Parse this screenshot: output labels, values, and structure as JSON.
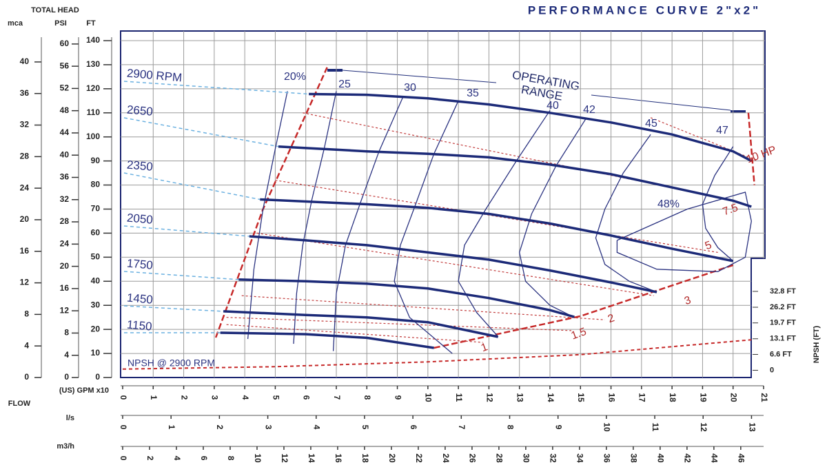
{
  "chart_data": {
    "type": "line",
    "title": "PERFORMANCE CURVE 2\"x2\"",
    "head_label": "TOTAL HEAD",
    "flow_label": "FLOW",
    "y_axes": [
      {
        "label": "mca",
        "ylim": [
          0,
          42.7
        ],
        "yticks": [
          0,
          4,
          8,
          12,
          16,
          20,
          24,
          28,
          32,
          36,
          40
        ]
      },
      {
        "label": "PSI",
        "ylim": [
          0,
          60.6
        ],
        "yticks": [
          0,
          4,
          8,
          12,
          16,
          20,
          24,
          28,
          32,
          36,
          40,
          44,
          48,
          52,
          56,
          60
        ]
      },
      {
        "label": "FT",
        "ylim": [
          0,
          140
        ],
        "yticks": [
          0,
          10,
          20,
          30,
          40,
          50,
          60,
          70,
          80,
          90,
          100,
          110,
          120,
          130,
          140
        ]
      }
    ],
    "x_axes": [
      {
        "label": "(US) GPM x10",
        "xlim": [
          0,
          21
        ],
        "xticks": [
          0,
          1,
          2,
          3,
          4,
          5,
          6,
          7,
          8,
          9,
          10,
          11,
          12,
          13,
          14,
          15,
          16,
          17,
          18,
          19,
          20,
          21
        ]
      },
      {
        "label": "l/s",
        "xlim": [
          0,
          13.25
        ],
        "xticks": [
          0,
          1,
          2,
          3,
          4,
          5,
          6,
          7,
          8,
          9,
          10,
          11,
          12,
          13
        ]
      },
      {
        "label": "m3/h",
        "xlim": [
          0,
          47.7
        ],
        "xticks": [
          0,
          2,
          4,
          6,
          8,
          10,
          12,
          14,
          16,
          18,
          20,
          22,
          24,
          26,
          28,
          30,
          32,
          34,
          36,
          38,
          40,
          42,
          44,
          46
        ]
      }
    ],
    "y2_label": "NPSH (FT)",
    "y2lim": [
      -3,
      137
    ],
    "y2ticks": [
      0,
      {
        "value": 6.6,
        "label": "6.6 FT"
      },
      {
        "value": 13.1,
        "label": "13.1 FT"
      },
      {
        "value": 19.7,
        "label": "19.7 FT"
      },
      {
        "value": 26.2,
        "label": "26.2 FT"
      },
      {
        "value": 32.8,
        "label": "32.8 FT"
      }
    ],
    "grid": true,
    "series": [
      {
        "name": "2900 RPM",
        "color": "#1c2a78",
        "x": [
          6.1,
          8,
          10,
          12,
          14,
          16,
          18,
          20,
          20.6
        ],
        "values": [
          117.8,
          117.5,
          116,
          113.5,
          110,
          106,
          101,
          94,
          90
        ]
      },
      {
        "name": "2650",
        "color": "#1c2a78",
        "x": [
          5.1,
          8,
          10,
          12,
          14,
          16,
          18,
          20,
          20.6
        ],
        "values": [
          96,
          94,
          93,
          91.5,
          88.5,
          84.5,
          79,
          73.5,
          71
        ]
      },
      {
        "name": "2350",
        "color": "#1c2a78",
        "x": [
          4.5,
          8,
          10,
          12,
          14,
          16,
          18,
          20
        ],
        "values": [
          74,
          72,
          70.5,
          68,
          64,
          59,
          53.5,
          48.4
        ]
      },
      {
        "name": "2050",
        "color": "#1c2a78",
        "x": [
          4.15,
          6,
          8,
          10,
          12,
          14,
          16,
          17.5
        ],
        "values": [
          58.7,
          57,
          55,
          52,
          49,
          44.5,
          39.5,
          35.5
        ]
      },
      {
        "name": "1750",
        "color": "#1c2a78",
        "x": [
          3.8,
          6,
          8,
          10,
          12,
          14,
          14.8
        ],
        "values": [
          40.7,
          40,
          39,
          37,
          33,
          28,
          25.2
        ]
      },
      {
        "name": "1450",
        "color": "#1c2a78",
        "x": [
          3.3,
          6,
          8,
          10,
          12.3
        ],
        "values": [
          27.5,
          26,
          25,
          23,
          16.9
        ]
      },
      {
        "name": "1150",
        "color": "#1c2a78",
        "x": [
          3.2,
          6,
          8,
          10.2
        ],
        "values": [
          18.6,
          18,
          16.5,
          12.3
        ]
      }
    ],
    "efficiency": [
      {
        "name": "20%",
        "x": [
          5.4,
          5.0,
          4.6,
          4.3,
          4.1
        ],
        "values": [
          119,
          95,
          70,
          45,
          16
        ]
      },
      {
        "name": "25",
        "x": [
          7.0,
          6.6,
          6.2,
          5.9,
          5.7,
          5.6
        ],
        "values": [
          119,
          95,
          74,
          55,
          35,
          14
        ]
      },
      {
        "name": "30",
        "x": [
          9.2,
          8.4,
          7.8,
          7.3,
          7.0,
          6.9
        ],
        "values": [
          117,
          94,
          73,
          55,
          35,
          11
        ]
      },
      {
        "name": "35",
        "x": [
          11.0,
          10.2,
          9.6,
          9.1,
          8.9,
          9.4,
          10.8
        ],
        "values": [
          115,
          93,
          72,
          55,
          40,
          25,
          10
        ]
      },
      {
        "name": "40",
        "x": [
          14.0,
          12.9,
          11.9,
          11.2,
          11.0,
          11.6,
          12.3
        ],
        "values": [
          111,
          90,
          70,
          55,
          40,
          27,
          17
        ]
      },
      {
        "name": "42",
        "x": [
          15.2,
          14.2,
          13.4,
          13.0,
          13.2,
          14.0,
          14.8
        ],
        "values": [
          108,
          88,
          68,
          52,
          40,
          30,
          25
        ]
      },
      {
        "name": "45",
        "x": [
          17.3,
          16.4,
          15.8,
          15.5,
          15.8,
          16.6,
          17.5
        ],
        "values": [
          101,
          85,
          70,
          58,
          47,
          40,
          35.5
        ]
      },
      {
        "name": "47",
        "x": [
          20.0,
          19.4,
          19.0,
          19.1,
          19.5,
          20.0
        ],
        "values": [
          96,
          84,
          72,
          62,
          54,
          48.4
        ]
      },
      {
        "name": "48%",
        "x": [
          16.2,
          18.5,
          20.4,
          20.6,
          20.4,
          19.5,
          17.5,
          16.2,
          16.2
        ],
        "values": [
          57,
          70,
          77,
          65,
          50,
          44,
          45,
          52,
          57
        ]
      }
    ],
    "efficiency_color": "#2a3280",
    "power": [
      {
        "name": "10 HP",
        "x": [
          17.3,
          20.8
        ],
        "values": [
          108,
          90
        ]
      },
      {
        "name": "7.5",
        "x": [
          5.9,
          19.9
        ],
        "values": [
          110,
          74
        ]
      },
      {
        "name": "5",
        "x": [
          5.0,
          19.5
        ],
        "values": [
          82,
          52
        ]
      },
      {
        "name": "3",
        "x": [
          4.4,
          17.4
        ],
        "values": [
          60,
          34
        ]
      },
      {
        "name": "2",
        "x": [
          3.9,
          15.8
        ],
        "values": [
          34,
          24
        ]
      },
      {
        "name": "1.5",
        "x": [
          3.4,
          14.7
        ],
        "values": [
          25,
          19.5
        ]
      },
      {
        "name": "1",
        "x": [
          3.4,
          11.8
        ],
        "values": [
          22,
          14.6
        ]
      }
    ],
    "power_color": "#c23b3b",
    "limits": [
      {
        "x": [
          3.05,
          4.6,
          6.7
        ],
        "values": [
          16.6,
          70,
          128.9
        ]
      },
      {
        "x": [
          10.2,
          15,
          20
        ],
        "values": [
          12.3,
          25.5,
          46.7
        ]
      },
      {
        "x": [
          20.5,
          20.6,
          20.7
        ],
        "values": [
          110,
          95,
          80
        ]
      }
    ],
    "limit_color": "#c62828",
    "npsh": {
      "name": "NPSH @ 2900 RPM",
      "color": "#c62828",
      "axis": "y2",
      "x": [
        0,
        5,
        10,
        15,
        20.6
      ],
      "values": [
        0.5,
        1.5,
        3.5,
        6.5,
        12.7
      ]
    },
    "annotation": [
      "OPERATING",
      "RANGE"
    ]
  }
}
